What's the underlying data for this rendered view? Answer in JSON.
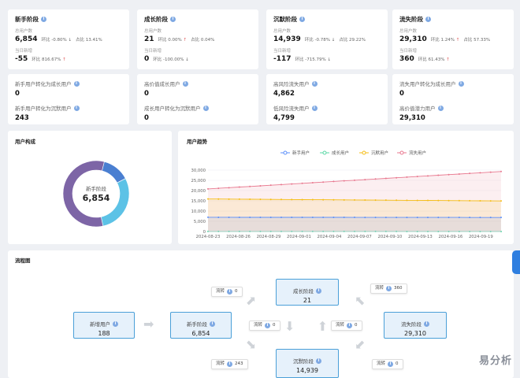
{
  "stats": [
    {
      "title": "新手阶段",
      "label1": "总用户数",
      "value1": "6,854",
      "change1": "环比 -0.80%",
      "dir1": "down",
      "ratio": "占比 13.41%",
      "label2": "当日新增",
      "value2": "-55",
      "change2": "环比 816.67%",
      "dir2": "up"
    },
    {
      "title": "成长阶段",
      "label1": "总用户数",
      "value1": "21",
      "change1": "环比 0.00%",
      "dir1": "up",
      "ratio": "占比 0.04%",
      "label2": "当日新增",
      "value2": "0",
      "change2": "环比 -100.00%",
      "dir2": "down"
    },
    {
      "title": "沉默阶段",
      "label1": "总用户数",
      "value1": "14,939",
      "change1": "环比 -0.78%",
      "dir1": "down",
      "ratio": "占比 29.22%",
      "label2": "当日新增",
      "value2": "-117",
      "change2": "环比 -715.79%",
      "dir2": "down"
    },
    {
      "title": "流失阶段",
      "label1": "总用户数",
      "value1": "29,310",
      "change1": "环比 1.24%",
      "dir1": "up",
      "ratio": "占比 57.33%",
      "label2": "当日新增",
      "value2": "360",
      "change2": "环比 61.43%",
      "dir2": "up"
    }
  ],
  "conversions": [
    [
      {
        "label": "新手用户转化为成长用户",
        "value": "0"
      },
      {
        "label": "新手用户转化为沉默用户",
        "value": "243"
      }
    ],
    [
      {
        "label": "高价值成长用户",
        "value": "0"
      },
      {
        "label": "成长用户转化为沉默用户",
        "value": "0"
      }
    ],
    [
      {
        "label": "高风险流失用户",
        "value": "4,862"
      },
      {
        "label": "低风险流失用户",
        "value": "4,799"
      }
    ],
    [
      {
        "label": "流失用户转化为成长用户",
        "value": "0"
      },
      {
        "label": "高价值潜力用户",
        "value": "29,310"
      }
    ]
  ],
  "composition": {
    "title": "用户构成",
    "center_label": "新手阶段",
    "center_value": "6,854"
  },
  "trend": {
    "title": "用户趋势"
  },
  "chart_data": {
    "type": "area",
    "x": [
      "2024-08-23",
      "2024-08-26",
      "2024-08-29",
      "2024-09-01",
      "2024-09-04",
      "2024-09-07",
      "2024-09-10",
      "2024-09-13",
      "2024-09-16",
      "2024-09-19"
    ],
    "x_end": "2024-09-21",
    "ylim": [
      0,
      30000
    ],
    "yticks": [
      "30,000",
      "25,000",
      "20,000",
      "15,000",
      "10,000",
      "5,000",
      "0"
    ],
    "series": [
      {
        "name": "新手用户",
        "color": "#5b8ff9",
        "start": 6950,
        "end": 6854
      },
      {
        "name": "成长用户",
        "color": "#5ad8a6",
        "start": 30,
        "end": 21
      },
      {
        "name": "沉默用户",
        "color": "#f6bd16",
        "start": 15900,
        "end": 14939
      },
      {
        "name": "流失用户",
        "color": "#e8788f",
        "start": 20800,
        "end": 29310
      }
    ]
  },
  "donut": [
    {
      "name": "新手阶段",
      "value": 6854,
      "color": "#4a7fd1"
    },
    {
      "name": "成长阶段",
      "value": 21,
      "color": "#5ad8a6"
    },
    {
      "name": "沉默阶段",
      "value": 14939,
      "color": "#5cc2e6"
    },
    {
      "name": "流失阶段",
      "value": 29310,
      "color": "#7d65a6"
    }
  ],
  "flow": {
    "title": "流程图",
    "new_users": {
      "title": "新增用户",
      "value": "188"
    },
    "novice": {
      "title": "新手阶段",
      "value": "6,854"
    },
    "growth": {
      "title": "成长阶段",
      "value": "21"
    },
    "churn": {
      "title": "流失阶段",
      "value": "29,310"
    },
    "silent": {
      "title": "沉默阶段",
      "value": "14,939"
    },
    "chips": [
      {
        "label": "流转",
        "value": "0"
      },
      {
        "label": "流转",
        "value": "360"
      },
      {
        "label": "流转",
        "value": "0"
      },
      {
        "label": "流转",
        "value": "0"
      },
      {
        "label": "流转",
        "value": "243"
      },
      {
        "label": "流转",
        "value": "0"
      }
    ]
  },
  "watermark": "易分析"
}
